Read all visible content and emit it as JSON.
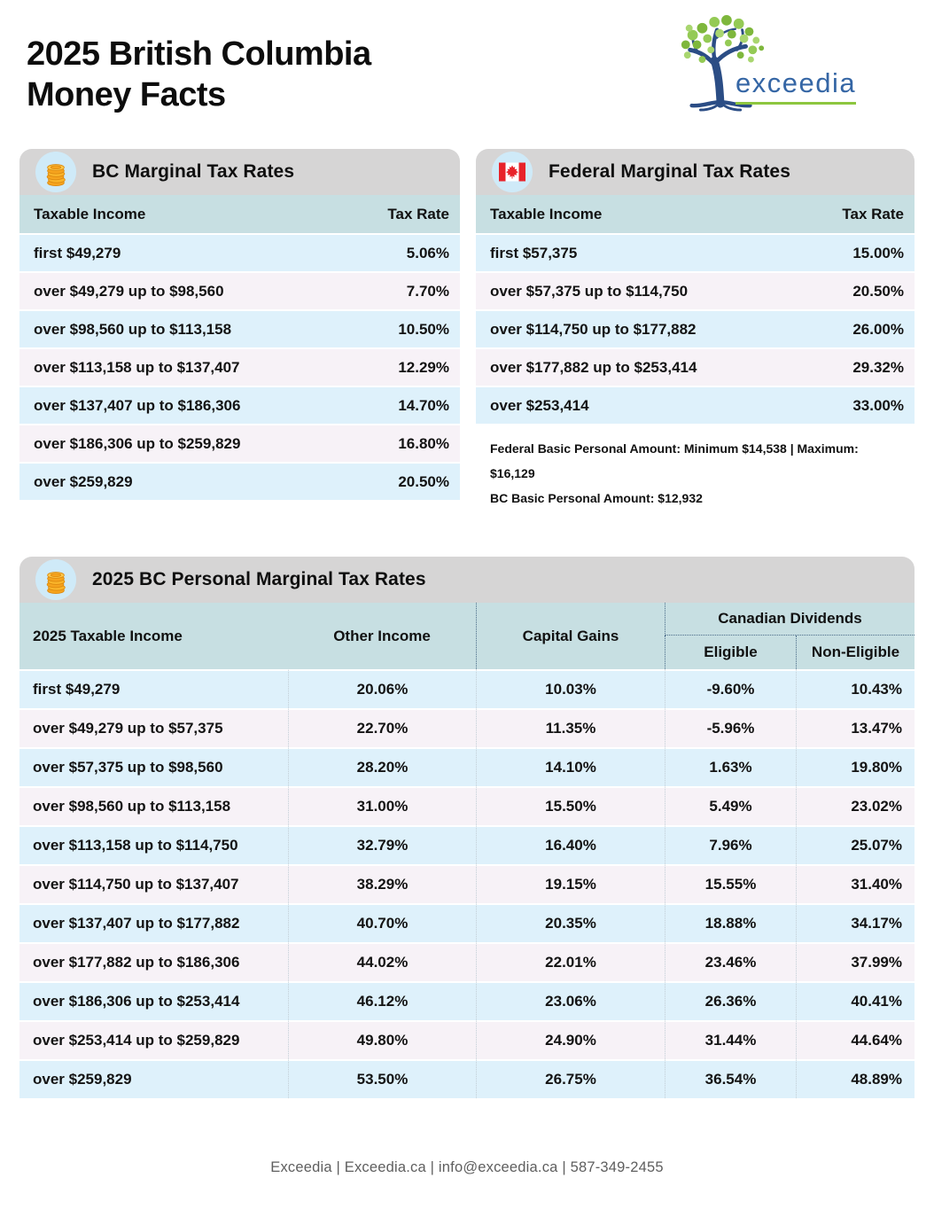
{
  "page": {
    "title_line1": "2025 British Columbia",
    "title_line2": "Money Facts",
    "logo_text": "exceedia",
    "footer": "Exceedia | Exceedia.ca | info@exceedia.ca | 587-349-2455"
  },
  "icons": {
    "bc_card": "coins-icon",
    "federal_card": "canada-flag-icon",
    "personal_card": "coins-icon",
    "logo": "tree-icon"
  },
  "colors": {
    "card_header_gray": "#d6d5d5",
    "column_header_teal": "#c7dfe2",
    "row_blue": "#def1fb",
    "row_pink": "#f7f2f7",
    "icon_circle_blue": "#cfeaf8",
    "flag_red": "#e8232a",
    "coin_gold": "#f6a41e",
    "logo_blue": "#3566a5",
    "logo_green": "#8dc63f",
    "header_dotted_line": "#4c6d89",
    "row_dotted_line": "#c2ced6"
  },
  "bc_table": {
    "title": "BC Marginal Tax Rates",
    "col_income": "Taxable Income",
    "col_rate": "Tax Rate",
    "rows": [
      {
        "income": "first $49,279",
        "rate": "5.06%"
      },
      {
        "income": "over $49,279 up to $98,560",
        "rate": "7.70%"
      },
      {
        "income": "over $98,560 up to $113,158",
        "rate": "10.50%"
      },
      {
        "income": "over $113,158 up to $137,407",
        "rate": "12.29%"
      },
      {
        "income": "over $137,407 up to $186,306",
        "rate": "14.70%"
      },
      {
        "income": "over $186,306 up to $259,829",
        "rate": "16.80%"
      },
      {
        "income": "over $259,829",
        "rate": "20.50%"
      }
    ]
  },
  "federal_table": {
    "title": "Federal Marginal Tax Rates",
    "col_income": "Taxable Income",
    "col_rate": "Tax Rate",
    "rows": [
      {
        "income": "first $57,375",
        "rate": "15.00%"
      },
      {
        "income": "over $57,375 up to $114,750",
        "rate": "20.50%"
      },
      {
        "income": "over $114,750 up to $177,882",
        "rate": "26.00%"
      },
      {
        "income": "over $177,882 up to $253,414",
        "rate": "29.32%"
      },
      {
        "income": "over $253,414",
        "rate": "33.00%"
      }
    ],
    "notes": [
      "Federal Basic Personal Amount:  Minimum $14,538 | Maximum: $16,129",
      "BC Basic Personal Amount:  $12,932"
    ]
  },
  "personal_table": {
    "title": "2025 BC Personal Marginal Tax Rates",
    "columns": {
      "income": "2025 Taxable Income",
      "other": "Other Income",
      "capital": "Capital Gains",
      "dividends_group": "Canadian Dividends",
      "eligible": "Eligible",
      "non_eligible": "Non-Eligible"
    },
    "rows": [
      {
        "income": "first $49,279",
        "other": "20.06%",
        "capital": "10.03%",
        "eligible": "-9.60%",
        "non_eligible": "10.43%"
      },
      {
        "income": "over $49,279 up to $57,375",
        "other": "22.70%",
        "capital": "11.35%",
        "eligible": "-5.96%",
        "non_eligible": "13.47%"
      },
      {
        "income": "over $57,375 up to $98,560",
        "other": "28.20%",
        "capital": "14.10%",
        "eligible": "1.63%",
        "non_eligible": "19.80%"
      },
      {
        "income": "over $98,560 up to $113,158",
        "other": "31.00%",
        "capital": "15.50%",
        "eligible": "5.49%",
        "non_eligible": "23.02%"
      },
      {
        "income": "over $113,158 up to $114,750",
        "other": "32.79%",
        "capital": "16.40%",
        "eligible": "7.96%",
        "non_eligible": "25.07%"
      },
      {
        "income": "over $114,750 up to $137,407",
        "other": "38.29%",
        "capital": "19.15%",
        "eligible": "15.55%",
        "non_eligible": "31.40%"
      },
      {
        "income": "over $137,407 up to $177,882",
        "other": "40.70%",
        "capital": "20.35%",
        "eligible": "18.88%",
        "non_eligible": "34.17%"
      },
      {
        "income": "over $177,882 up to $186,306",
        "other": "44.02%",
        "capital": "22.01%",
        "eligible": "23.46%",
        "non_eligible": "37.99%"
      },
      {
        "income": "over $186,306 up to $253,414",
        "other": "46.12%",
        "capital": "23.06%",
        "eligible": "26.36%",
        "non_eligible": "40.41%"
      },
      {
        "income": "over $253,414 up to $259,829",
        "other": "49.80%",
        "capital": "24.90%",
        "eligible": "31.44%",
        "non_eligible": "44.64%"
      },
      {
        "income": "over $259,829",
        "other": "53.50%",
        "capital": "26.75%",
        "eligible": "36.54%",
        "non_eligible": "48.89%"
      }
    ]
  }
}
